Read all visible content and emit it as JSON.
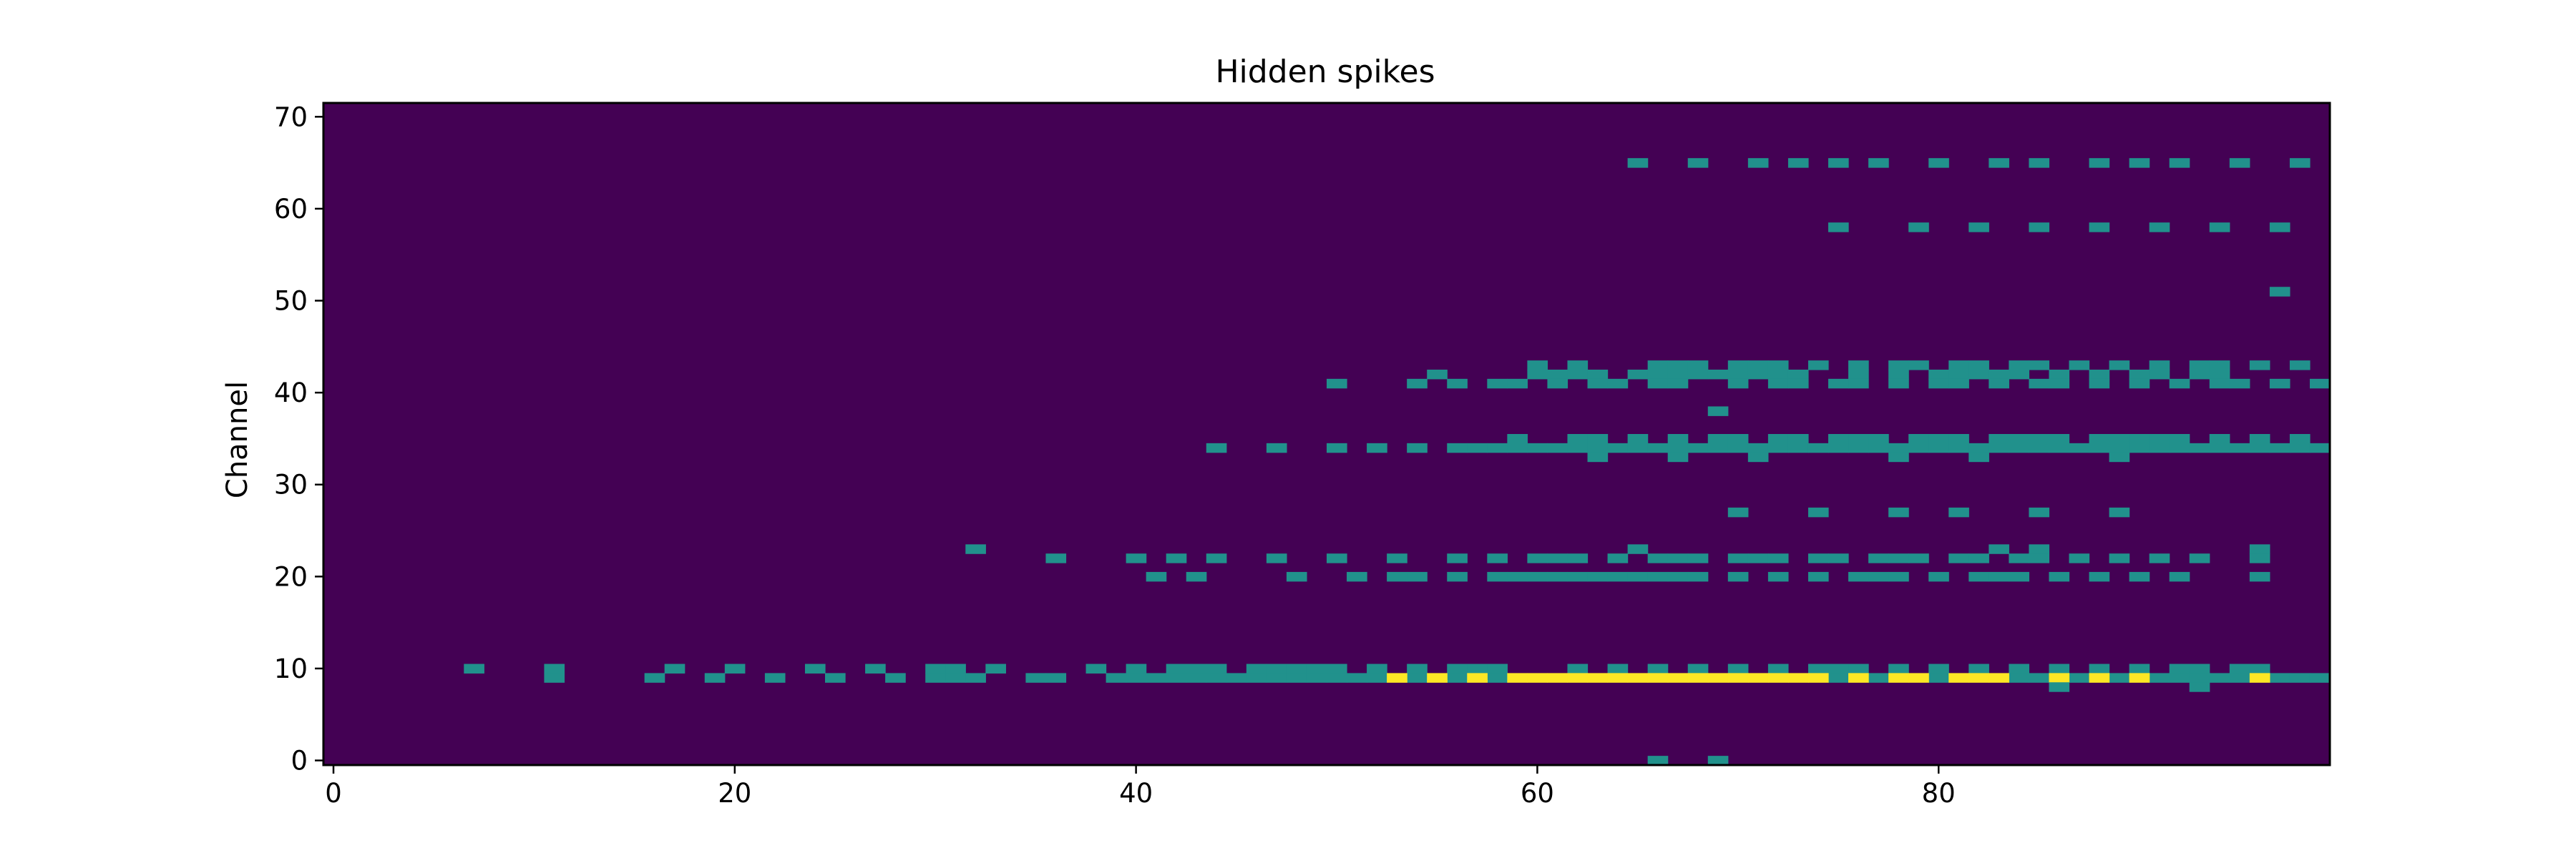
{
  "chart_data": {
    "type": "heatmap",
    "title": "Hidden spikes",
    "xlabel": "",
    "ylabel": "Channel",
    "xlim": [
      -0.5,
      99.5
    ],
    "ylim": [
      -0.5,
      71.5
    ],
    "x_ticks": [
      0,
      20,
      40,
      60,
      80
    ],
    "y_ticks": [
      0,
      10,
      20,
      30,
      40,
      50,
      60,
      70
    ],
    "colormap": "viridis",
    "colors": {
      "background": "#440154",
      "level_1": "#21918c",
      "level_2": "#fde725"
    },
    "value_range": [
      0,
      2
    ],
    "levels": [
      {
        "value": 1,
        "color_key": "level_1"
      },
      {
        "value": 2,
        "color_key": "level_2"
      }
    ],
    "nonzero_cells": [
      {
        "channel": 65,
        "value": 1,
        "times": [
          65,
          68,
          71,
          73,
          75,
          77,
          80,
          83,
          85,
          88,
          90,
          92,
          95,
          98
        ]
      },
      {
        "channel": 58,
        "value": 1,
        "times": [
          75,
          79,
          82,
          85,
          88,
          91,
          94,
          97
        ]
      },
      {
        "channel": 51,
        "value": 1,
        "times": [
          97
        ]
      },
      {
        "channel": 43,
        "value": 1,
        "times": [
          60,
          62,
          66,
          67,
          68,
          70,
          71,
          72,
          74,
          76,
          78,
          79,
          81,
          82,
          84,
          85,
          87,
          89,
          91,
          93,
          94,
          96,
          98
        ]
      },
      {
        "channel": 42,
        "value": 1,
        "times": [
          55,
          60,
          61,
          62,
          63,
          65,
          66,
          67,
          68,
          69,
          70,
          71,
          72,
          73,
          76,
          78,
          80,
          81,
          82,
          83,
          84,
          86,
          88,
          90,
          91,
          93,
          94
        ]
      },
      {
        "channel": 41,
        "value": 1,
        "times": [
          50,
          54,
          56,
          58,
          59,
          61,
          63,
          64,
          66,
          67,
          70,
          72,
          73,
          75,
          76,
          78,
          80,
          81,
          83,
          85,
          86,
          88,
          90,
          92,
          94,
          95,
          97,
          99
        ]
      },
      {
        "channel": 38,
        "value": 1,
        "times": [
          69
        ]
      },
      {
        "channel": 35,
        "value": 1,
        "times": [
          59,
          62,
          63,
          65,
          67,
          69,
          70,
          72,
          73,
          75,
          76,
          77,
          79,
          80,
          81,
          83,
          84,
          85,
          86,
          88,
          89,
          90,
          91,
          92,
          94,
          96,
          98
        ]
      },
      {
        "channel": 34,
        "value": 1,
        "times": [
          44,
          47,
          50,
          52,
          54,
          56,
          57,
          58,
          59,
          60,
          61,
          62,
          63,
          64,
          65,
          66,
          67,
          68,
          69,
          70,
          71,
          72,
          73,
          74,
          75,
          76,
          77,
          78,
          79,
          80,
          81,
          82,
          83,
          84,
          85,
          86,
          87,
          88,
          89,
          90,
          91,
          92,
          93,
          94,
          95,
          96,
          97,
          98,
          99
        ]
      },
      {
        "channel": 33,
        "value": 1,
        "times": [
          63,
          67,
          71,
          78,
          82,
          89
        ]
      },
      {
        "channel": 27,
        "value": 1,
        "times": [
          70,
          74,
          78,
          81,
          85,
          89
        ]
      },
      {
        "channel": 23,
        "value": 1,
        "times": [
          32,
          65,
          83,
          85,
          96
        ]
      },
      {
        "channel": 22,
        "value": 1,
        "times": [
          36,
          40,
          42,
          44,
          47,
          50,
          53,
          56,
          58,
          60,
          61,
          62,
          64,
          66,
          67,
          68,
          70,
          71,
          72,
          74,
          75,
          77,
          78,
          79,
          81,
          82,
          84,
          85,
          87,
          89,
          91,
          93,
          96
        ]
      },
      {
        "channel": 20,
        "value": 1,
        "times": [
          41,
          43,
          48,
          51,
          53,
          54,
          56,
          58,
          59,
          60,
          61,
          62,
          63,
          64,
          65,
          66,
          67,
          68,
          70,
          72,
          74,
          76,
          77,
          78,
          80,
          82,
          83,
          84,
          86,
          88,
          90,
          92,
          96
        ]
      },
      {
        "channel": 10,
        "value": 1,
        "times": [
          7,
          11,
          17,
          20,
          24,
          27,
          30,
          31,
          33,
          38,
          40,
          42,
          43,
          44,
          46,
          47,
          48,
          49,
          50,
          52,
          54,
          56,
          57,
          58,
          62,
          64,
          66,
          68,
          70,
          72,
          74,
          75,
          76,
          78,
          80,
          82,
          84,
          86,
          88,
          90,
          92,
          93,
          95,
          96
        ]
      },
      {
        "channel": 9,
        "value": 1,
        "times": [
          11,
          16,
          19,
          22,
          25,
          28,
          30,
          31,
          32,
          35,
          36,
          39,
          40,
          41,
          42,
          43,
          44,
          45,
          46,
          47,
          48,
          49,
          50,
          51,
          52,
          54,
          56,
          58,
          75,
          77,
          80,
          84,
          85,
          87,
          89,
          91,
          92,
          93,
          94,
          95,
          97,
          98,
          99
        ]
      },
      {
        "channel": 9,
        "value": 2,
        "times": [
          53,
          55,
          57,
          59,
          60,
          61,
          62,
          63,
          64,
          65,
          66,
          67,
          68,
          69,
          70,
          71,
          72,
          73,
          74,
          76,
          78,
          79,
          81,
          82,
          83,
          86,
          88,
          90,
          96
        ]
      },
      {
        "channel": 8,
        "value": 1,
        "times": [
          86,
          93
        ]
      },
      {
        "channel": 0,
        "value": 1,
        "times": [
          66,
          69
        ]
      }
    ]
  }
}
